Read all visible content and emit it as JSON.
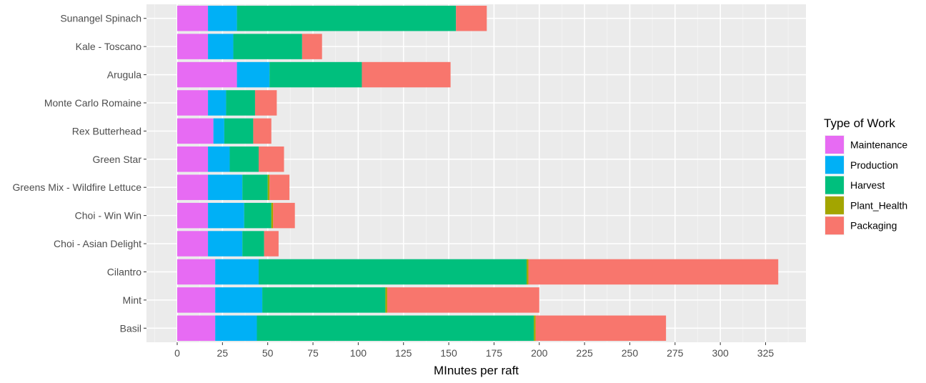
{
  "chart_data": {
    "type": "bar",
    "orientation": "horizontal",
    "stacked": true,
    "xlabel": "MInutes per raft",
    "ylabel": "",
    "xlim": [
      -17,
      348
    ],
    "xticks": [
      0,
      25,
      50,
      75,
      100,
      125,
      150,
      175,
      200,
      225,
      250,
      275,
      300,
      325
    ],
    "grid": true,
    "legend_position": "right",
    "legend_title": "Type of Work",
    "categories": [
      "Sunangel Spinach",
      "Kale - Toscano",
      "Arugula",
      "Monte Carlo Romaine",
      "Rex Butterhead",
      "Green Star",
      "Greens Mix - Wildfire Lettuce",
      "Choi - Win Win",
      "Choi - Asian Delight",
      "Cilantro",
      "Mint",
      "Basil"
    ],
    "series": [
      {
        "name": "Maintenance",
        "color": "#E76BF3",
        "values": [
          17,
          17,
          33,
          17,
          20,
          17,
          17,
          17,
          17,
          21,
          21,
          21
        ]
      },
      {
        "name": "Production",
        "color": "#00B0F6",
        "values": [
          16,
          14,
          18,
          10,
          6,
          12,
          19,
          20,
          19,
          24,
          26,
          23
        ]
      },
      {
        "name": "Harvest",
        "color": "#00BF7D",
        "values": [
          121,
          38,
          51,
          16,
          16,
          16,
          14,
          15,
          12,
          148,
          68,
          153
        ]
      },
      {
        "name": "Plant_Health",
        "color": "#A3A500",
        "values": [
          0,
          0,
          0,
          0,
          0,
          0,
          1,
          1,
          0,
          1,
          1,
          1
        ]
      },
      {
        "name": "Packaging",
        "color": "#F8766D",
        "values": [
          17,
          11,
          49,
          12,
          10,
          14,
          11,
          12,
          8,
          138,
          84,
          72
        ]
      }
    ]
  }
}
